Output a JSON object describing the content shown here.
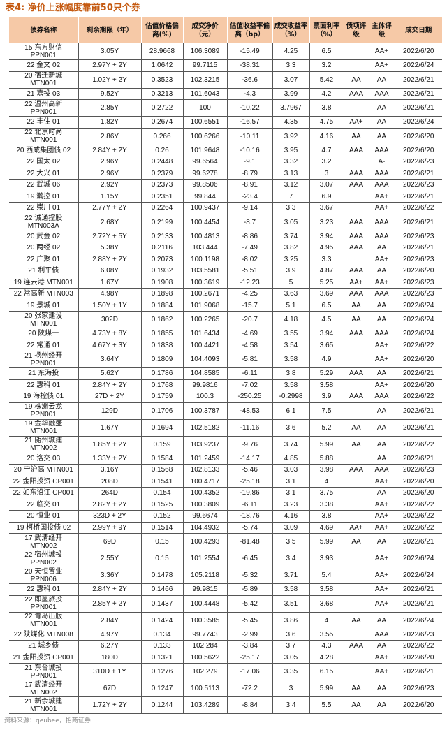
{
  "title": "表4: 净价上涨幅度靠前50只个券",
  "columns": [
    "债券名称",
    "剩余期限（年）",
    "估值价格偏离(%)",
    "成交净价（元）",
    "估值收益率偏离（bp）",
    "成交收益率（%）",
    "票面利率（%）",
    "债项评级",
    "主体评级",
    "成交日期"
  ],
  "rows": [
    [
      "15 东方财信\nPPN001",
      "3.05Y",
      "28.9668",
      "106.3089",
      "-15.49",
      "4.25",
      "6.5",
      "",
      "AA+",
      "2022/6/20"
    ],
    [
      "22 金文 02",
      "2.97Y + 2Y",
      "1.0642",
      "99.7115",
      "-38.31",
      "3.3",
      "3.2",
      "",
      "AA+",
      "2022/6/24"
    ],
    [
      "20 宿迁新城\nMTN001",
      "1.02Y + 2Y",
      "0.3523",
      "102.3215",
      "-36.6",
      "3.07",
      "5.42",
      "AA",
      "AA",
      "2022/6/21"
    ],
    [
      "21 嘉投 03",
      "9.52Y",
      "0.3213",
      "101.6043",
      "-4.3",
      "3.99",
      "4.2",
      "AAA",
      "AAA",
      "2022/6/21"
    ],
    [
      "22 温州高新\nPPN001",
      "2.85Y",
      "0.2722",
      "100",
      "-10.22",
      "3.7967",
      "3.8",
      "",
      "AA",
      "2022/6/21"
    ],
    [
      "22 丰住 01",
      "1.82Y",
      "0.2674",
      "100.6551",
      "-16.57",
      "4.35",
      "4.75",
      "AA+",
      "AA",
      "2022/6/24"
    ],
    [
      "22 北京时尚\nMTN001",
      "2.86Y",
      "0.266",
      "100.6266",
      "-10.11",
      "3.92",
      "4.16",
      "AA",
      "AA",
      "2022/6/20"
    ],
    [
      "20 西咸集团债 02",
      "2.84Y + 2Y",
      "0.26",
      "101.9648",
      "-10.16",
      "3.95",
      "4.7",
      "AAA",
      "AAA",
      "2022/6/20"
    ],
    [
      "22 国太 02",
      "2.96Y",
      "0.2448",
      "99.6564",
      "-9.1",
      "3.32",
      "3.2",
      "",
      "A-",
      "2022/6/23"
    ],
    [
      "22 大兴 01",
      "2.96Y",
      "0.2379",
      "99.6278",
      "-8.79",
      "3.13",
      "3",
      "AAA",
      "AAA",
      "2022/6/21"
    ],
    [
      "22 武城 06",
      "2.92Y",
      "0.2373",
      "99.8506",
      "-8.91",
      "3.12",
      "3.07",
      "AAA",
      "AAA",
      "2022/6/23"
    ],
    [
      "19 瀚控 01",
      "1.15Y",
      "0.2351",
      "99.844",
      "-23.4",
      "7",
      "6.9",
      "",
      "AA+",
      "2022/6/21"
    ],
    [
      "22 崇川 01",
      "2.77Y + 2Y",
      "0.2264",
      "100.9437",
      "-9.14",
      "3.3",
      "3.67",
      "",
      "AA+",
      "2022/6/22"
    ],
    [
      "22 诚通控股\nMTN003A",
      "2.68Y",
      "0.2199",
      "100.4454",
      "-8.7",
      "3.05",
      "3.23",
      "AAA",
      "AAA",
      "2022/6/21"
    ],
    [
      "20 武金 02",
      "2.72Y + 5Y",
      "0.2133",
      "100.4813",
      "-8.86",
      "3.74",
      "3.94",
      "AAA",
      "AAA",
      "2022/6/23"
    ],
    [
      "20 两经 02",
      "5.38Y",
      "0.2116",
      "103.444",
      "-7.49",
      "3.82",
      "4.95",
      "AAA",
      "AA",
      "2022/6/21"
    ],
    [
      "22 广聚 01",
      "2.88Y + 2Y",
      "0.2073",
      "100.1198",
      "-8.02",
      "3.25",
      "3.3",
      "",
      "AA+",
      "2022/6/23"
    ],
    [
      "21 利平债",
      "6.08Y",
      "0.1932",
      "103.5581",
      "-5.51",
      "3.9",
      "4.87",
      "AAA",
      "AA",
      "2022/6/20"
    ],
    [
      "19 连云港 MTN001",
      "1.67Y",
      "0.1908",
      "100.3619",
      "-12.23",
      "5",
      "5.25",
      "AA+",
      "AA+",
      "2022/6/23"
    ],
    [
      "22 常高新 MTN003",
      "4.98Y",
      "0.1898",
      "100.2671",
      "-4.25",
      "3.63",
      "3.69",
      "AAA",
      "AAA",
      "2022/6/23"
    ],
    [
      "19 景城 01",
      "1.50Y + 1Y",
      "0.1884",
      "101.9068",
      "-15.7",
      "5.1",
      "6.5",
      "AA",
      "AA",
      "2022/6/24"
    ],
    [
      "20 张家建设\nMTN001",
      "302D",
      "0.1862",
      "100.2265",
      "-20.7",
      "4.18",
      "4.5",
      "AA",
      "AA",
      "2022/6/24"
    ],
    [
      "20 陕煤一",
      "4.73Y + 8Y",
      "0.1855",
      "101.6434",
      "-4.69",
      "3.55",
      "3.94",
      "AAA",
      "AAA",
      "2022/6/24"
    ],
    [
      "22 常通 01",
      "4.67Y + 3Y",
      "0.1838",
      "100.4421",
      "-4.58",
      "3.54",
      "3.65",
      "",
      "AA+",
      "2022/6/22"
    ],
    [
      "21 扬州经开\nPPN001",
      "3.64Y",
      "0.1809",
      "104.4093",
      "-5.81",
      "3.58",
      "4.9",
      "",
      "AA+",
      "2022/6/20"
    ],
    [
      "21 东海投",
      "5.62Y",
      "0.1786",
      "104.8585",
      "-6.11",
      "3.8",
      "5.29",
      "AAA",
      "AA",
      "2022/6/21"
    ],
    [
      "22 惠科 01",
      "2.84Y + 2Y",
      "0.1768",
      "99.9816",
      "-7.02",
      "3.58",
      "3.58",
      "",
      "AA+",
      "2022/6/20"
    ],
    [
      "19 海控债 01",
      "27D + 2Y",
      "0.1759",
      "100.3",
      "-250.25",
      "-0.2998",
      "3.9",
      "AAA",
      "AAA",
      "2022/6/22"
    ],
    [
      "19 株洲云龙\nPPN001",
      "129D",
      "0.1706",
      "100.3787",
      "-48.53",
      "6.1",
      "7.5",
      "",
      "AA",
      "2022/6/21"
    ],
    [
      "19 金华融盛\nMTN001",
      "1.67Y",
      "0.1694",
      "102.5182",
      "-11.16",
      "3.6",
      "5.2",
      "AA",
      "AA",
      "2022/6/21"
    ],
    [
      "21 随州城建\nMTN002",
      "1.85Y + 2Y",
      "0.159",
      "103.9237",
      "-9.76",
      "3.74",
      "5.99",
      "AA",
      "AA",
      "2022/6/22"
    ],
    [
      "20 洛交 03",
      "1.33Y + 2Y",
      "0.1584",
      "101.2459",
      "-14.17",
      "4.85",
      "5.88",
      "",
      "AA",
      "2022/6/21"
    ],
    [
      "20 宁沪高 MTN001",
      "3.16Y",
      "0.1568",
      "102.8133",
      "-5.46",
      "3.03",
      "3.98",
      "AAA",
      "AAA",
      "2022/6/23"
    ],
    [
      "22 金阳投资 CP001",
      "208D",
      "0.1541",
      "100.4717",
      "-25.18",
      "3.1",
      "4",
      "",
      "AA+",
      "2022/6/20"
    ],
    [
      "22 如东沿江 CP001",
      "264D",
      "0.154",
      "100.4352",
      "-19.86",
      "3.1",
      "3.75",
      "",
      "AA",
      "2022/6/20"
    ],
    [
      "22 临交 01",
      "2.82Y + 2Y",
      "0.1525",
      "100.3809",
      "-6.11",
      "3.23",
      "3.38",
      "",
      "AA+",
      "2022/6/22"
    ],
    [
      "20 恒业 01",
      "323D + 2Y",
      "0.152",
      "99.6674",
      "-18.76",
      "4.16",
      "3.8",
      "",
      "AA+",
      "2022/6/22"
    ],
    [
      "19 柯桥国投债 02",
      "2.99Y + 9Y",
      "0.1514",
      "104.4932",
      "-5.74",
      "3.09",
      "4.69",
      "AA+",
      "AA+",
      "2022/6/22"
    ],
    [
      "17 武清经开\nMTN002",
      "69D",
      "0.15",
      "100.4293",
      "-81.48",
      "3.5",
      "5.99",
      "AA",
      "AA",
      "2022/6/21"
    ],
    [
      "22 宿州城投\nPPN002",
      "2.55Y",
      "0.15",
      "101.2554",
      "-6.45",
      "3.4",
      "3.93",
      "",
      "AA+",
      "2022/6/24"
    ],
    [
      "20 天恒置业\nPPN006",
      "3.36Y",
      "0.1478",
      "105.2118",
      "-5.32",
      "3.71",
      "5.4",
      "",
      "AA+",
      "2022/6/24"
    ],
    [
      "22 惠科 01",
      "2.84Y + 2Y",
      "0.1466",
      "99.9815",
      "-5.89",
      "3.58",
      "3.58",
      "",
      "AA+",
      "2022/6/21"
    ],
    [
      "22 即墨旅投\nPPN001",
      "2.85Y + 2Y",
      "0.1437",
      "100.4448",
      "-5.42",
      "3.51",
      "3.68",
      "",
      "AA+",
      "2022/6/21"
    ],
    [
      "22 青岛出版\nMTN001",
      "2.84Y",
      "0.1424",
      "100.3585",
      "-5.45",
      "3.86",
      "4",
      "AA",
      "AA",
      "2022/6/24"
    ],
    [
      "22 陕煤化 MTN008",
      "4.97Y",
      "0.134",
      "99.7743",
      "-2.99",
      "3.6",
      "3.55",
      "",
      "AAA",
      "2022/6/23"
    ],
    [
      "21 城乡债",
      "6.27Y",
      "0.133",
      "102.284",
      "-3.84",
      "3.7",
      "4.3",
      "AAA",
      "AA",
      "2022/6/22"
    ],
    [
      "21 金阳投资 CP001",
      "180D",
      "0.1321",
      "100.5622",
      "-25.17",
      "3.05",
      "4.28",
      "",
      "AA+",
      "2022/6/20"
    ],
    [
      "21 东台城投\nPPN001",
      "310D + 1Y",
      "0.1276",
      "102.279",
      "-17.06",
      "3.35",
      "6.15",
      "",
      "AA+",
      "2022/6/21"
    ],
    [
      "17 武清经开\nMTN002",
      "67D",
      "0.1247",
      "100.5113",
      "-72.2",
      "3",
      "5.99",
      "AA",
      "AA",
      "2022/6/23"
    ],
    [
      "21 新余城建\nMTN001",
      "1.72Y + 2Y",
      "0.1244",
      "103.4289",
      "-8.84",
      "3.4",
      "5.5",
      "AA",
      "AA",
      "2022/6/20"
    ]
  ],
  "source": "资料来源：qeubee，招商证券",
  "colors": {
    "header_bg": "#f6c9a7",
    "title": "#c55a11",
    "rule": "#c0504d"
  }
}
